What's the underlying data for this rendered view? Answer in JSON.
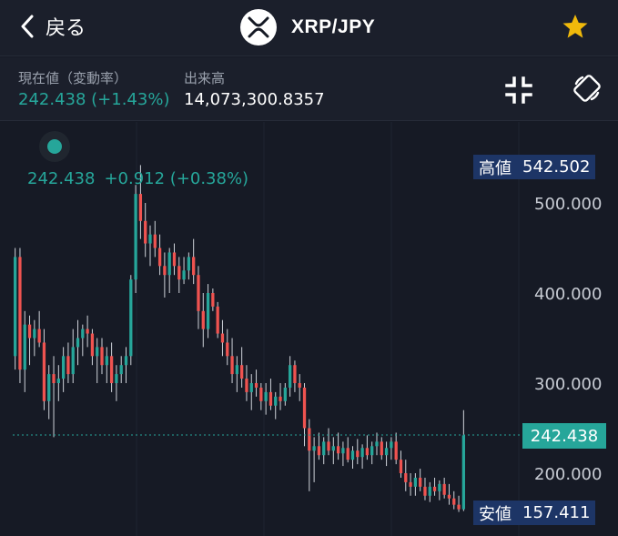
{
  "header": {
    "back_label": "戻る",
    "pair_title": "XRP/JPY"
  },
  "info": {
    "price_label": "現在値（変動率）",
    "price_value": "242.438 (+1.43%)",
    "volume_label": "出来高",
    "volume_value": "14,073,300.8357"
  },
  "legend": {
    "price": "242.438",
    "change": "+0.912 (+0.38%)"
  },
  "tags": {
    "high_label": "高値",
    "high_value": "542.502",
    "low_label": "安値",
    "low_value": "157.411",
    "current_value": "242.438"
  },
  "colors": {
    "up": "#26a69a",
    "down": "#ef5350",
    "star": "#f0b90b",
    "tag_bg": "#1d3566"
  },
  "icons": [
    "chevron-left-icon",
    "xrp-logo-icon",
    "star-icon",
    "exit-fullscreen-icon",
    "rotate-screen-icon"
  ],
  "chart_data": {
    "type": "candlestick",
    "y_ticks": [
      "500.000",
      "400.000",
      "300.000",
      "200.000"
    ],
    "y_tick_values": [
      500,
      400,
      300,
      200
    ],
    "ylim": [
      140,
      560
    ],
    "high": 542.502,
    "low": 157.411,
    "current": 242.438,
    "candles": [
      {
        "o": 330,
        "h": 450,
        "l": 315,
        "c": 440
      },
      {
        "o": 440,
        "h": 450,
        "l": 300,
        "c": 315
      },
      {
        "o": 315,
        "h": 380,
        "l": 290,
        "c": 365
      },
      {
        "o": 365,
        "h": 375,
        "l": 320,
        "c": 350
      },
      {
        "o": 350,
        "h": 370,
        "l": 330,
        "c": 360
      },
      {
        "o": 360,
        "h": 380,
        "l": 340,
        "c": 345
      },
      {
        "o": 345,
        "h": 360,
        "l": 270,
        "c": 280
      },
      {
        "o": 280,
        "h": 320,
        "l": 260,
        "c": 310
      },
      {
        "o": 310,
        "h": 330,
        "l": 240,
        "c": 300
      },
      {
        "o": 300,
        "h": 320,
        "l": 280,
        "c": 305
      },
      {
        "o": 305,
        "h": 340,
        "l": 290,
        "c": 330
      },
      {
        "o": 330,
        "h": 345,
        "l": 300,
        "c": 310
      },
      {
        "o": 310,
        "h": 360,
        "l": 300,
        "c": 340
      },
      {
        "o": 340,
        "h": 370,
        "l": 320,
        "c": 350
      },
      {
        "o": 350,
        "h": 365,
        "l": 330,
        "c": 360
      },
      {
        "o": 360,
        "h": 375,
        "l": 340,
        "c": 355
      },
      {
        "o": 355,
        "h": 360,
        "l": 320,
        "c": 330
      },
      {
        "o": 330,
        "h": 350,
        "l": 300,
        "c": 340
      },
      {
        "o": 340,
        "h": 350,
        "l": 310,
        "c": 320
      },
      {
        "o": 320,
        "h": 340,
        "l": 300,
        "c": 330
      },
      {
        "o": 330,
        "h": 345,
        "l": 290,
        "c": 300
      },
      {
        "o": 300,
        "h": 320,
        "l": 280,
        "c": 310
      },
      {
        "o": 310,
        "h": 330,
        "l": 300,
        "c": 320
      },
      {
        "o": 320,
        "h": 340,
        "l": 300,
        "c": 330
      },
      {
        "o": 330,
        "h": 420,
        "l": 320,
        "c": 415
      },
      {
        "o": 415,
        "h": 520,
        "l": 400,
        "c": 510
      },
      {
        "o": 510,
        "h": 542,
        "l": 460,
        "c": 480
      },
      {
        "o": 480,
        "h": 500,
        "l": 440,
        "c": 455
      },
      {
        "o": 455,
        "h": 475,
        "l": 430,
        "c": 465
      },
      {
        "o": 465,
        "h": 480,
        "l": 440,
        "c": 450
      },
      {
        "o": 450,
        "h": 465,
        "l": 420,
        "c": 430
      },
      {
        "o": 430,
        "h": 445,
        "l": 395,
        "c": 420
      },
      {
        "o": 420,
        "h": 450,
        "l": 400,
        "c": 445
      },
      {
        "o": 445,
        "h": 455,
        "l": 420,
        "c": 430
      },
      {
        "o": 430,
        "h": 440,
        "l": 400,
        "c": 415
      },
      {
        "o": 415,
        "h": 440,
        "l": 410,
        "c": 425
      },
      {
        "o": 425,
        "h": 445,
        "l": 415,
        "c": 440
      },
      {
        "o": 440,
        "h": 460,
        "l": 410,
        "c": 420
      },
      {
        "o": 420,
        "h": 430,
        "l": 360,
        "c": 380
      },
      {
        "o": 380,
        "h": 400,
        "l": 340,
        "c": 360
      },
      {
        "o": 360,
        "h": 410,
        "l": 350,
        "c": 400
      },
      {
        "o": 400,
        "h": 405,
        "l": 380,
        "c": 385
      },
      {
        "o": 385,
        "h": 390,
        "l": 350,
        "c": 355
      },
      {
        "o": 355,
        "h": 370,
        "l": 330,
        "c": 345
      },
      {
        "o": 345,
        "h": 360,
        "l": 320,
        "c": 330
      },
      {
        "o": 330,
        "h": 350,
        "l": 300,
        "c": 310
      },
      {
        "o": 310,
        "h": 330,
        "l": 290,
        "c": 320
      },
      {
        "o": 320,
        "h": 340,
        "l": 295,
        "c": 305
      },
      {
        "o": 305,
        "h": 320,
        "l": 280,
        "c": 290
      },
      {
        "o": 290,
        "h": 310,
        "l": 270,
        "c": 300
      },
      {
        "o": 300,
        "h": 315,
        "l": 285,
        "c": 295
      },
      {
        "o": 295,
        "h": 300,
        "l": 270,
        "c": 280
      },
      {
        "o": 280,
        "h": 300,
        "l": 265,
        "c": 290
      },
      {
        "o": 290,
        "h": 305,
        "l": 270,
        "c": 275
      },
      {
        "o": 275,
        "h": 290,
        "l": 260,
        "c": 285
      },
      {
        "o": 285,
        "h": 300,
        "l": 270,
        "c": 280
      },
      {
        "o": 280,
        "h": 300,
        "l": 275,
        "c": 295
      },
      {
        "o": 295,
        "h": 330,
        "l": 285,
        "c": 320
      },
      {
        "o": 320,
        "h": 325,
        "l": 290,
        "c": 300
      },
      {
        "o": 300,
        "h": 310,
        "l": 280,
        "c": 295
      },
      {
        "o": 295,
        "h": 300,
        "l": 230,
        "c": 250
      },
      {
        "o": 250,
        "h": 260,
        "l": 180,
        "c": 225
      },
      {
        "o": 225,
        "h": 240,
        "l": 190,
        "c": 230
      },
      {
        "o": 230,
        "h": 245,
        "l": 215,
        "c": 220
      },
      {
        "o": 220,
        "h": 240,
        "l": 210,
        "c": 235
      },
      {
        "o": 235,
        "h": 250,
        "l": 220,
        "c": 225
      },
      {
        "o": 225,
        "h": 240,
        "l": 210,
        "c": 230
      },
      {
        "o": 230,
        "h": 245,
        "l": 215,
        "c": 222
      },
      {
        "o": 222,
        "h": 235,
        "l": 208,
        "c": 228
      },
      {
        "o": 228,
        "h": 240,
        "l": 212,
        "c": 215
      },
      {
        "o": 215,
        "h": 230,
        "l": 205,
        "c": 225
      },
      {
        "o": 225,
        "h": 238,
        "l": 210,
        "c": 218
      },
      {
        "o": 218,
        "h": 232,
        "l": 205,
        "c": 228
      },
      {
        "o": 228,
        "h": 242,
        "l": 215,
        "c": 220
      },
      {
        "o": 220,
        "h": 235,
        "l": 210,
        "c": 230
      },
      {
        "o": 230,
        "h": 245,
        "l": 220,
        "c": 235
      },
      {
        "o": 235,
        "h": 240,
        "l": 215,
        "c": 220
      },
      {
        "o": 220,
        "h": 235,
        "l": 208,
        "c": 228
      },
      {
        "o": 228,
        "h": 240,
        "l": 215,
        "c": 235
      },
      {
        "o": 235,
        "h": 245,
        "l": 210,
        "c": 215
      },
      {
        "o": 215,
        "h": 225,
        "l": 195,
        "c": 200
      },
      {
        "o": 200,
        "h": 215,
        "l": 180,
        "c": 190
      },
      {
        "o": 190,
        "h": 200,
        "l": 175,
        "c": 185
      },
      {
        "o": 185,
        "h": 200,
        "l": 175,
        "c": 195
      },
      {
        "o": 195,
        "h": 205,
        "l": 180,
        "c": 185
      },
      {
        "o": 185,
        "h": 195,
        "l": 170,
        "c": 175
      },
      {
        "o": 175,
        "h": 190,
        "l": 168,
        "c": 185
      },
      {
        "o": 185,
        "h": 195,
        "l": 175,
        "c": 180
      },
      {
        "o": 180,
        "h": 192,
        "l": 170,
        "c": 188
      },
      {
        "o": 188,
        "h": 195,
        "l": 172,
        "c": 176
      },
      {
        "o": 176,
        "h": 188,
        "l": 165,
        "c": 172
      },
      {
        "o": 172,
        "h": 180,
        "l": 160,
        "c": 165
      },
      {
        "o": 165,
        "h": 175,
        "l": 157,
        "c": 160
      },
      {
        "o": 160,
        "h": 270,
        "l": 158,
        "c": 242
      }
    ]
  }
}
